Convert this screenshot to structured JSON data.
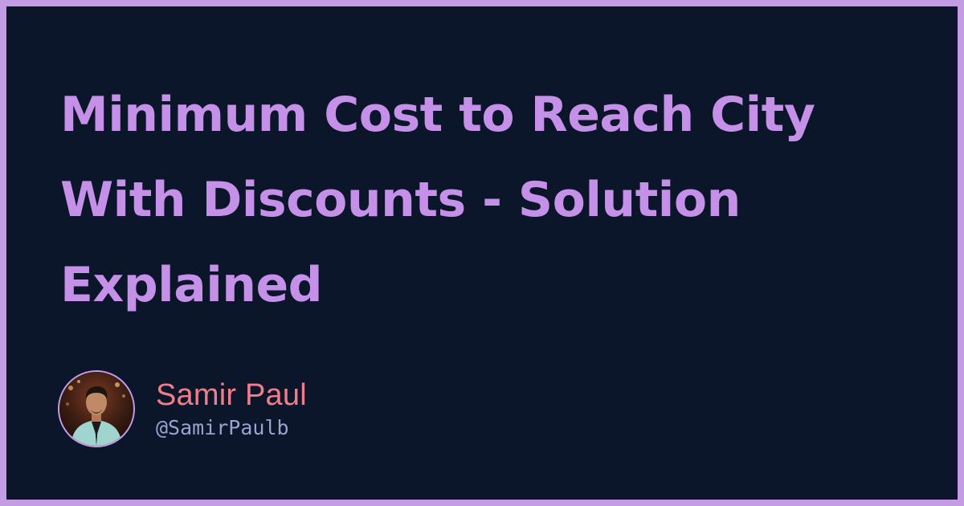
{
  "post": {
    "title": "Minimum Cost to Reach City With Discounts - Solution Explained"
  },
  "author": {
    "name": "Samir Paul",
    "handle": "@SamirPaulb",
    "avatar_icon": "person-photo-icon"
  },
  "colors": {
    "frame": "#c39ce3",
    "background": "#0b162a",
    "title": "#c590e8",
    "author_name": "#ef7e8a",
    "author_handle": "#9aa3cf"
  }
}
